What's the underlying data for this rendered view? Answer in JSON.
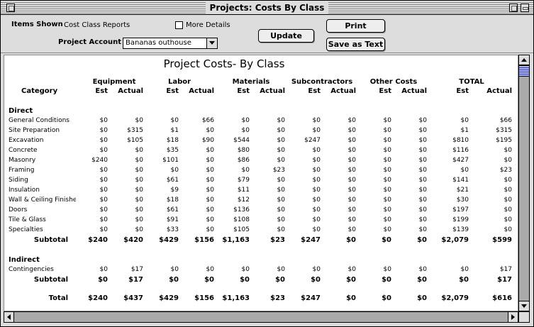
{
  "window": {
    "title": "Projects: Costs By Class"
  },
  "header": {
    "items_shown_label": "Items Shown",
    "items_shown_value": "Cost Class Reports",
    "more_details_label": "More Details",
    "more_details_checked": false,
    "project_account_label": "Project Account",
    "project_account_value": "Bananas outhouse",
    "update_label": "Update",
    "print_label": "Print",
    "save_label": "Save as Text"
  },
  "report": {
    "title": "Project Costs- By Class",
    "category_label": "Category",
    "groups": [
      "Equipment",
      "Labor",
      "Materials",
      "Subcontractors",
      "Other Costs",
      "TOTAL"
    ],
    "est_label": "Est",
    "actual_label": "Actual",
    "sections": [
      {
        "name": "Direct",
        "rows": [
          {
            "name": "General Conditions",
            "values": [
              "$0",
              "$0",
              "$0",
              "$66",
              "$0",
              "$0",
              "$0",
              "$0",
              "$0",
              "$0",
              "$0",
              "$66"
            ]
          },
          {
            "name": "Site Preparation",
            "values": [
              "$0",
              "$315",
              "$1",
              "$0",
              "$0",
              "$0",
              "$0",
              "$0",
              "$0",
              "$0",
              "$1",
              "$315"
            ]
          },
          {
            "name": "Excavation",
            "values": [
              "$0",
              "$105",
              "$18",
              "$90",
              "$544",
              "$0",
              "$247",
              "$0",
              "$0",
              "$0",
              "$810",
              "$195"
            ]
          },
          {
            "name": "Concrete",
            "values": [
              "$0",
              "$0",
              "$35",
              "$0",
              "$80",
              "$0",
              "$0",
              "$0",
              "$0",
              "$0",
              "$116",
              "$0"
            ]
          },
          {
            "name": "Masonry",
            "values": [
              "$240",
              "$0",
              "$101",
              "$0",
              "$86",
              "$0",
              "$0",
              "$0",
              "$0",
              "$0",
              "$427",
              "$0"
            ]
          },
          {
            "name": "Framing",
            "values": [
              "$0",
              "$0",
              "$0",
              "$0",
              "$0",
              "$23",
              "$0",
              "$0",
              "$0",
              "$0",
              "$0",
              "$23"
            ]
          },
          {
            "name": "Siding",
            "values": [
              "$0",
              "$0",
              "$61",
              "$0",
              "$79",
              "$0",
              "$0",
              "$0",
              "$0",
              "$0",
              "$141",
              "$0"
            ]
          },
          {
            "name": "Insulation",
            "values": [
              "$0",
              "$0",
              "$9",
              "$0",
              "$11",
              "$0",
              "$0",
              "$0",
              "$0",
              "$0",
              "$21",
              "$0"
            ]
          },
          {
            "name": "Wall & Ceiling Finishe",
            "values": [
              "$0",
              "$0",
              "$18",
              "$0",
              "$12",
              "$0",
              "$0",
              "$0",
              "$0",
              "$0",
              "$30",
              "$0"
            ]
          },
          {
            "name": "Doors",
            "values": [
              "$0",
              "$0",
              "$61",
              "$0",
              "$136",
              "$0",
              "$0",
              "$0",
              "$0",
              "$0",
              "$197",
              "$0"
            ]
          },
          {
            "name": "Tile & Glass",
            "values": [
              "$0",
              "$0",
              "$91",
              "$0",
              "$108",
              "$0",
              "$0",
              "$0",
              "$0",
              "$0",
              "$199",
              "$0"
            ]
          },
          {
            "name": "Specialties",
            "values": [
              "$0",
              "$0",
              "$33",
              "$0",
              "$105",
              "$0",
              "$0",
              "$0",
              "$0",
              "$0",
              "$139",
              "$0"
            ]
          }
        ],
        "subtotal": {
          "name": "Subtotal",
          "values": [
            "$240",
            "$420",
            "$429",
            "$156",
            "$1,163",
            "$23",
            "$247",
            "$0",
            "$0",
            "$0",
            "$2,079",
            "$599"
          ]
        }
      },
      {
        "name": "Indirect",
        "rows": [
          {
            "name": "Contingencies",
            "values": [
              "$0",
              "$17",
              "$0",
              "$0",
              "$0",
              "$0",
              "$0",
              "$0",
              "$0",
              "$0",
              "$0",
              "$17"
            ]
          }
        ],
        "subtotal": {
          "name": "Subtotal",
          "values": [
            "$0",
            "$17",
            "$0",
            "$0",
            "$0",
            "$0",
            "$0",
            "$0",
            "$0",
            "$0",
            "$0",
            "$17"
          ]
        }
      }
    ],
    "total": {
      "name": "Total",
      "values": [
        "$240",
        "$437",
        "$429",
        "$156",
        "$1,163",
        "$23",
        "$247",
        "$0",
        "$0",
        "$0",
        "$2,079",
        "$616"
      ]
    }
  }
}
